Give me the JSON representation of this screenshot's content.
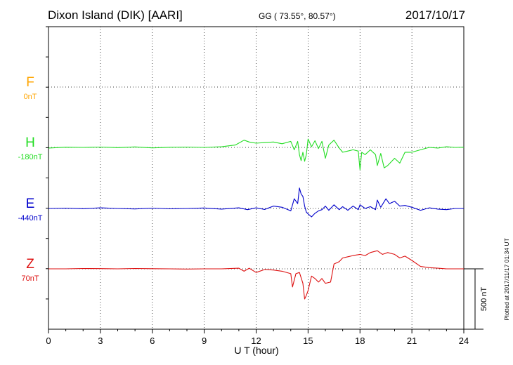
{
  "header": {
    "station": "Dixon Island (DIK)  [AARI]",
    "coords": "GG ( 73.55°,  80.57°)",
    "date": "2017/10/17"
  },
  "plotted_note": "Plotted at 2017/11/17 01:34 UT",
  "scale_label": "500 nT",
  "colors": {
    "F": "#ffa500",
    "H": "#22dd22",
    "E": "#0000cc",
    "Z": "#dd1111",
    "axis": "#000000"
  },
  "chart_data": {
    "type": "line",
    "xlabel": "U T (hour)",
    "xlim": [
      0,
      24
    ],
    "xticks": [
      "0",
      "3",
      "6",
      "9",
      "12",
      "15",
      "18",
      "21",
      "24"
    ],
    "ylabel_scale_nT": 500,
    "series": [
      {
        "name": "F",
        "baseline_label": "0nT",
        "color": "#ffa500",
        "x": [],
        "y": []
      },
      {
        "name": "H",
        "baseline_label": "-180nT",
        "color": "#22dd22",
        "x": [
          0,
          1,
          2,
          3,
          4,
          5,
          6,
          7,
          8,
          9,
          10,
          10.8,
          11.3,
          11.6,
          12,
          12.5,
          13,
          13.5,
          14,
          14.2,
          14.4,
          14.5,
          14.6,
          14.7,
          14.8,
          14.9,
          15,
          15.2,
          15.4,
          15.6,
          15.8,
          16,
          16.2,
          16.5,
          16.8,
          17,
          17.3,
          17.6,
          17.9,
          18,
          18.1,
          18.3,
          18.6,
          18.9,
          19,
          19.2,
          19.4,
          19.6,
          19.8,
          20,
          20.3,
          20.6,
          21,
          21.5,
          22,
          22.5,
          23,
          23.5,
          24
        ],
        "y": [
          -5,
          2,
          0,
          3,
          -2,
          4,
          -4,
          1,
          3,
          0,
          5,
          20,
          60,
          45,
          35,
          40,
          45,
          30,
          50,
          -20,
          50,
          -60,
          -110,
          -40,
          -115,
          -60,
          70,
          5,
          55,
          -10,
          50,
          -90,
          20,
          60,
          -5,
          -40,
          -30,
          -20,
          -30,
          -185,
          -40,
          -60,
          -20,
          -60,
          -150,
          -50,
          -170,
          -150,
          -120,
          -90,
          -130,
          -40,
          -40,
          -20,
          0,
          -5,
          5,
          0,
          2
        ]
      },
      {
        "name": "E",
        "baseline_label": "-440nT",
        "color": "#0000cc",
        "x": [
          0,
          1,
          2,
          3,
          4,
          5,
          6,
          7,
          8,
          9,
          10,
          11,
          11.5,
          12,
          12.5,
          13,
          13.5,
          14,
          14.2,
          14.4,
          14.5,
          14.6,
          14.7,
          14.8,
          14.9,
          15,
          15.2,
          15.4,
          15.6,
          15.8,
          16,
          16.2,
          16.5,
          16.8,
          17,
          17.3,
          17.6,
          17.9,
          18,
          18.3,
          18.6,
          18.9,
          19,
          19.2,
          19.5,
          19.7,
          20,
          20.3,
          20.6,
          21,
          21.5,
          22,
          22.5,
          23,
          23.5,
          24
        ],
        "y": [
          0,
          3,
          -2,
          5,
          0,
          -4,
          3,
          -3,
          0,
          4,
          -5,
          5,
          -10,
          5,
          -8,
          20,
          10,
          -20,
          80,
          40,
          170,
          120,
          100,
          20,
          -30,
          -45,
          -70,
          -40,
          -20,
          -10,
          20,
          -15,
          30,
          -10,
          15,
          -15,
          20,
          -10,
          30,
          0,
          15,
          -10,
          70,
          10,
          80,
          40,
          60,
          20,
          25,
          10,
          -15,
          5,
          -5,
          -10,
          0,
          0
        ]
      },
      {
        "name": "Z",
        "baseline_label": "70nT",
        "color": "#dd1111",
        "x": [
          0,
          1,
          2,
          3,
          4,
          5,
          6,
          7,
          8,
          9,
          10,
          11,
          11.3,
          11.6,
          12,
          12.5,
          13,
          13.5,
          14,
          14.1,
          14.3,
          14.5,
          14.7,
          14.8,
          14.9,
          15,
          15.2,
          15.4,
          15.6,
          15.8,
          16,
          16.3,
          16.5,
          16.8,
          17,
          17.3,
          17.6,
          18,
          18.3,
          18.6,
          19,
          19.3,
          19.6,
          20,
          20.3,
          20.6,
          21,
          21.5,
          22,
          22.5,
          23,
          23.5,
          24
        ],
        "y": [
          0,
          0,
          3,
          2,
          0,
          3,
          1,
          0,
          -2,
          0,
          0,
          5,
          -20,
          5,
          -30,
          -5,
          -10,
          -20,
          -40,
          -150,
          -40,
          -30,
          -120,
          -250,
          -220,
          -180,
          -60,
          -80,
          -110,
          -80,
          -120,
          -110,
          40,
          60,
          90,
          100,
          110,
          120,
          110,
          135,
          150,
          120,
          135,
          120,
          90,
          105,
          70,
          20,
          10,
          5,
          0,
          0,
          0
        ]
      }
    ]
  }
}
